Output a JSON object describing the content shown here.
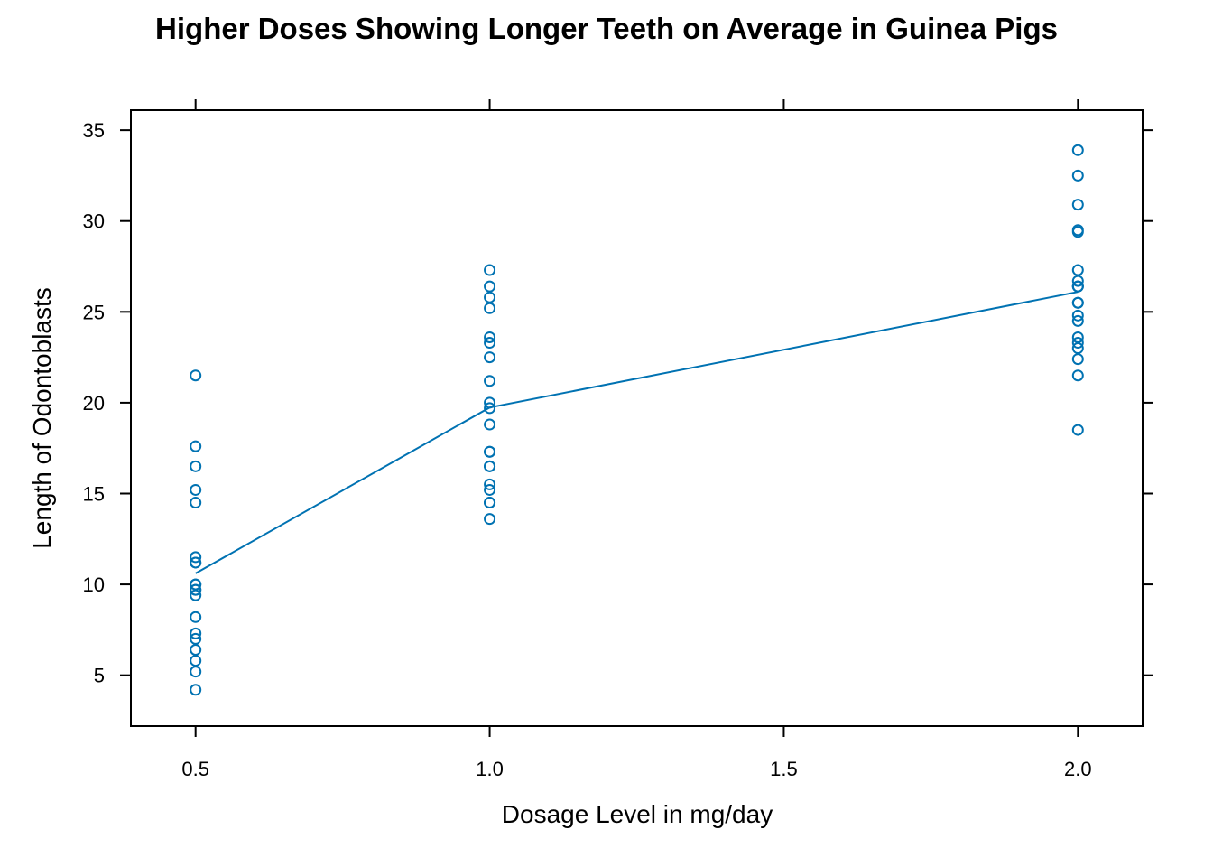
{
  "chart_data": {
    "type": "scatter",
    "title": "Higher Doses Showing Longer Teeth on Average in Guinea Pigs",
    "xlabel": "Dosage Level in mg/day",
    "ylabel": "Length of Odontoblasts",
    "xlim": [
      0.39,
      2.11
    ],
    "ylim": [
      2.2,
      36.1
    ],
    "x_ticks": [
      0.5,
      1.0,
      1.5,
      2.0
    ],
    "x_tick_labels": [
      "0.5",
      "1.0",
      "1.5",
      "2.0"
    ],
    "y_ticks": [
      5,
      10,
      15,
      20,
      25,
      30,
      35
    ],
    "y_tick_labels": [
      "5",
      "10",
      "15",
      "20",
      "25",
      "30",
      "35"
    ],
    "grid": false,
    "color": "#0072B2",
    "series": [
      {
        "points": [
          [
            0.5,
            4.2
          ],
          [
            0.5,
            11.5
          ],
          [
            0.5,
            7.3
          ],
          [
            0.5,
            5.8
          ],
          [
            0.5,
            6.4
          ],
          [
            0.5,
            10.0
          ],
          [
            0.5,
            11.2
          ],
          [
            0.5,
            11.2
          ],
          [
            0.5,
            5.2
          ],
          [
            0.5,
            7.0
          ],
          [
            0.5,
            15.2
          ],
          [
            0.5,
            21.5
          ],
          [
            0.5,
            17.6
          ],
          [
            0.5,
            9.7
          ],
          [
            0.5,
            14.5
          ],
          [
            0.5,
            10.0
          ],
          [
            0.5,
            8.2
          ],
          [
            0.5,
            9.4
          ],
          [
            0.5,
            16.5
          ],
          [
            0.5,
            9.7
          ],
          [
            1.0,
            16.5
          ],
          [
            1.0,
            16.5
          ],
          [
            1.0,
            15.2
          ],
          [
            1.0,
            17.3
          ],
          [
            1.0,
            22.5
          ],
          [
            1.0,
            17.3
          ],
          [
            1.0,
            13.6
          ],
          [
            1.0,
            14.5
          ],
          [
            1.0,
            18.8
          ],
          [
            1.0,
            15.5
          ],
          [
            1.0,
            19.7
          ],
          [
            1.0,
            23.3
          ],
          [
            1.0,
            23.6
          ],
          [
            1.0,
            26.4
          ],
          [
            1.0,
            20.0
          ],
          [
            1.0,
            25.2
          ],
          [
            1.0,
            25.8
          ],
          [
            1.0,
            21.2
          ],
          [
            1.0,
            14.5
          ],
          [
            1.0,
            27.3
          ],
          [
            2.0,
            23.6
          ],
          [
            2.0,
            18.5
          ],
          [
            2.0,
            33.9
          ],
          [
            2.0,
            25.5
          ],
          [
            2.0,
            26.4
          ],
          [
            2.0,
            32.5
          ],
          [
            2.0,
            26.7
          ],
          [
            2.0,
            21.5
          ],
          [
            2.0,
            23.3
          ],
          [
            2.0,
            29.5
          ],
          [
            2.0,
            25.5
          ],
          [
            2.0,
            26.4
          ],
          [
            2.0,
            22.4
          ],
          [
            2.0,
            24.5
          ],
          [
            2.0,
            24.8
          ],
          [
            2.0,
            30.9
          ],
          [
            2.0,
            26.4
          ],
          [
            2.0,
            27.3
          ],
          [
            2.0,
            29.4
          ],
          [
            2.0,
            23.0
          ]
        ]
      },
      {
        "type": "line",
        "x": [
          0.5,
          1.0,
          2.0
        ],
        "values": [
          10.605,
          19.735,
          26.1
        ]
      }
    ]
  }
}
